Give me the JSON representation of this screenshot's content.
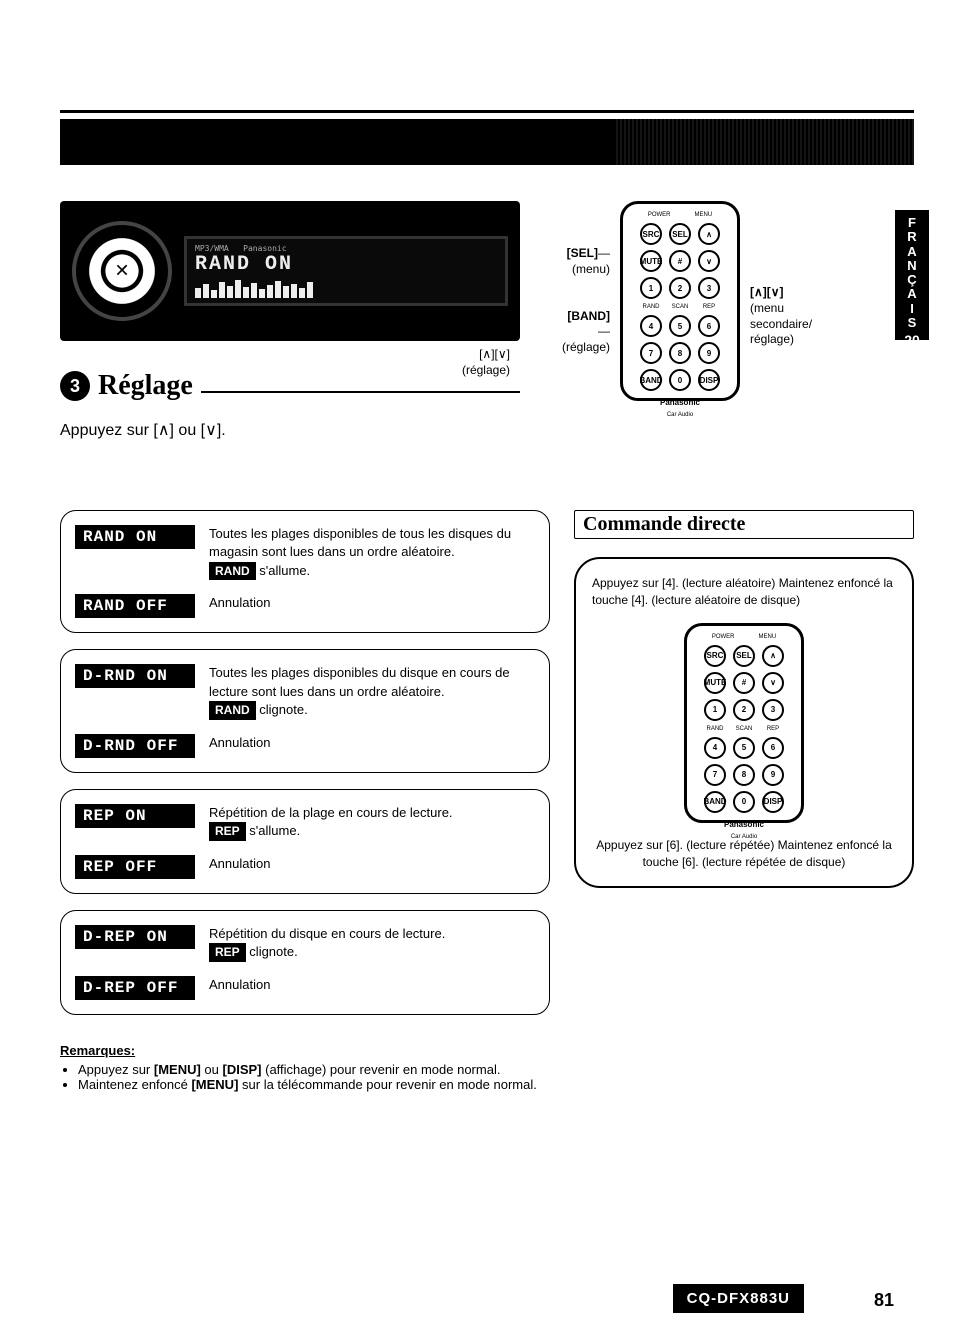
{
  "langTab": {
    "letters": [
      "F",
      "R",
      "A",
      "N",
      "Ç",
      "A",
      "I",
      "S"
    ],
    "num": "20"
  },
  "headunit": {
    "brand": "Panasonic",
    "lcd_text": "RAND ON"
  },
  "topCallouts": {
    "sel_label": "[SEL]",
    "sel_sub": "(menu)",
    "band_label": "[BAND]",
    "band_sub": "(réglage)",
    "updown_label": "[∧][∨]",
    "reglage_sub": "(réglage)",
    "updown_right_label": "[∧][∨]",
    "updown_right_sub": "(menu secondaire/ réglage)"
  },
  "remote": {
    "brand": "Panasonic",
    "brand_sub": "Car Audio",
    "top_tiny": [
      "POWER",
      "MENU"
    ],
    "rows": [
      [
        "SRC",
        "SEL",
        "∧"
      ],
      [
        "MUTE",
        "#",
        "∨"
      ],
      [
        "1",
        "2",
        "3"
      ],
      [
        "4",
        "5",
        "6"
      ],
      [
        "7",
        "8",
        "9"
      ],
      [
        "BAND",
        "0",
        "DISP"
      ]
    ],
    "tiny_row": [
      "RAND",
      "SCAN",
      "REP"
    ]
  },
  "section": {
    "num": "3",
    "title": "Réglage",
    "instruction": "Appuyez sur [∧] ou [∨]."
  },
  "settings": [
    {
      "rows": [
        {
          "badge": "RAND ON",
          "desc": "Toutes les plages disponibles de tous les disques du magasin sont lues dans un ordre aléatoire.",
          "indicator": "RAND",
          "ind_action": "s'allume."
        },
        {
          "badge": "RAND OFF",
          "desc": "Annulation"
        }
      ]
    },
    {
      "rows": [
        {
          "badge": "D-RND ON",
          "desc": "Toutes les plages disponibles du disque en cours de lecture sont lues dans un ordre aléatoire.",
          "indicator": "RAND",
          "ind_action": "clignote."
        },
        {
          "badge": "D-RND OFF",
          "desc": "Annulation"
        }
      ]
    },
    {
      "rows": [
        {
          "badge": "REP ON",
          "desc": "Répétition de la plage en cours de lecture.",
          "indicator": "REP",
          "ind_action": "s'allume."
        },
        {
          "badge": "REP OFF",
          "desc": "Annulation"
        }
      ]
    },
    {
      "rows": [
        {
          "badge": "D-REP ON",
          "desc": "Répétition du disque en cours de lecture.",
          "indicator": "REP",
          "ind_action": "clignote."
        },
        {
          "badge": "D-REP OFF",
          "desc": "Annulation"
        }
      ]
    }
  ],
  "commandeDirecte": {
    "title": "Commande directe",
    "note_top": "Appuyez sur [4]. (lecture aléatoire) Maintenez enfoncé la touche [4]. (lecture aléatoire de disque)",
    "note_bottom": "Appuyez sur [6]. (lecture répétée) Maintenez enfoncé la touche [6]. (lecture répétée de disque)"
  },
  "remarks": {
    "title": "Remarques:",
    "items": [
      "Appuyez sur [MENU] ou [DISP] (affichage) pour revenir en mode normal.",
      "Maintenez enfoncé [MENU] sur la télécommande pour revenir en mode normal."
    ]
  },
  "model": "CQ-DFX883U",
  "pageNum": "81"
}
